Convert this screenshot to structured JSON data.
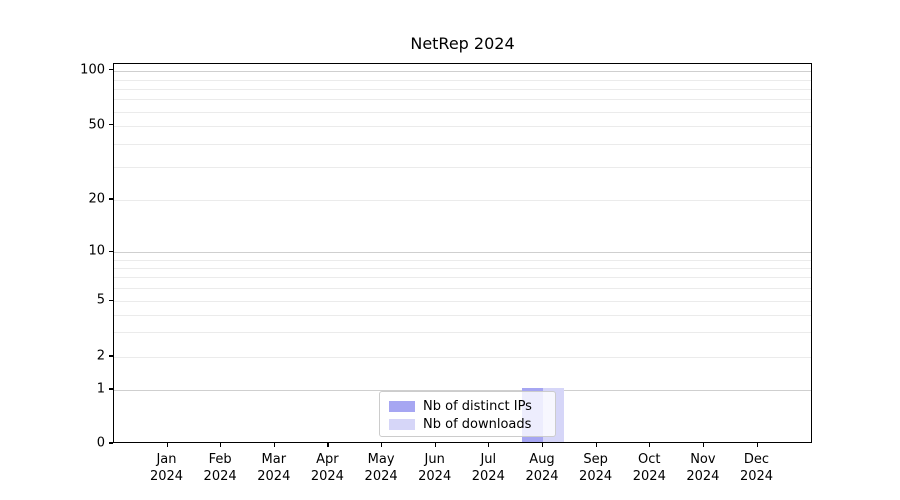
{
  "title": "NetRep 2024",
  "chart_data": {
    "type": "bar",
    "title": "NetRep 2024",
    "categories": [
      "Jan",
      "Feb",
      "Mar",
      "Apr",
      "May",
      "Jun",
      "Jul",
      "Aug",
      "Sep",
      "Oct",
      "Nov",
      "Dec"
    ],
    "category_year": "2024",
    "series": [
      {
        "name": "Nb of distinct IPs",
        "color": "#a6a6f2",
        "values": [
          0,
          0,
          0,
          0,
          0,
          0,
          0,
          1,
          0,
          0,
          0,
          0
        ]
      },
      {
        "name": "Nb of downloads",
        "color": "#d6d6f8",
        "values": [
          0,
          0,
          0,
          0,
          0,
          0,
          0,
          1,
          0,
          0,
          0,
          0
        ]
      }
    ],
    "xlabel": "",
    "ylabel": "",
    "yscale": "log-like (linear 0-1, log 1-100)",
    "y_tick_labels": [
      "100",
      "50",
      "20",
      "10",
      "5",
      "2",
      "1",
      "0"
    ],
    "y_tick_values": [
      100,
      50,
      20,
      10,
      5,
      2,
      1,
      0
    ],
    "y_minor_tick_values": [
      90,
      80,
      70,
      60,
      40,
      30,
      9,
      8,
      7,
      6,
      4,
      3
    ],
    "ylim": [
      0,
      100
    ],
    "grid": "horizontal",
    "legend_position": "bottom-center",
    "colors": {
      "grid_major": "#cfcfcf",
      "grid_minor": "#ebebeb",
      "spine": "#000000",
      "legend_border": "#cccccc"
    }
  }
}
